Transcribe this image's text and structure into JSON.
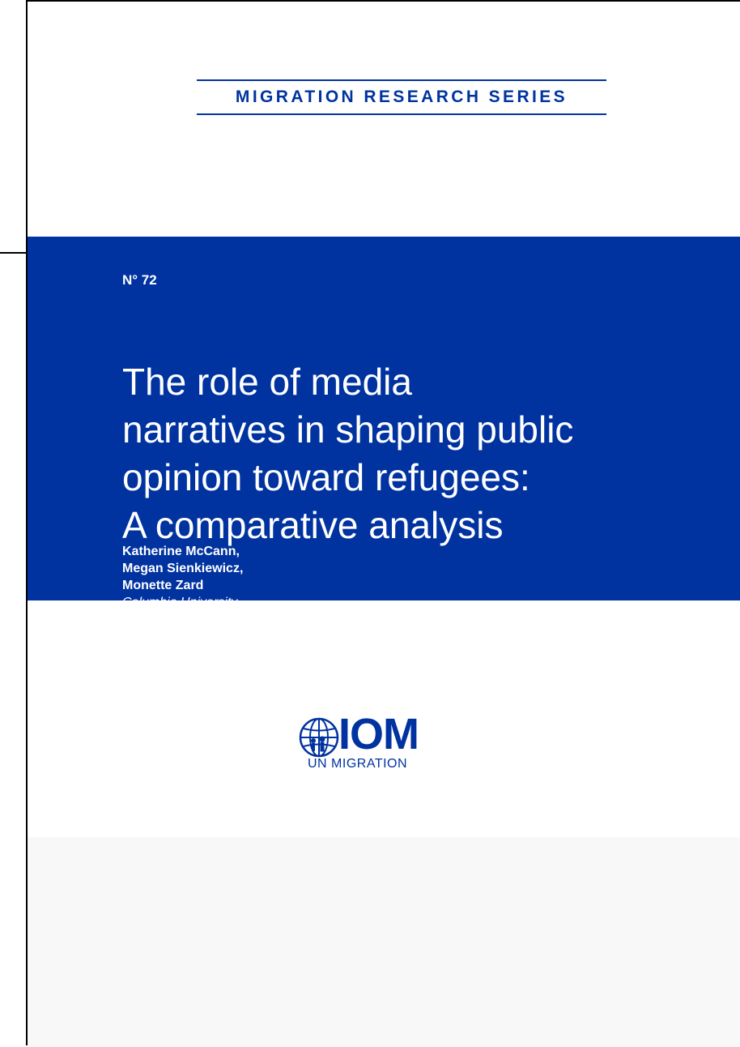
{
  "cover": {
    "series_title": "MIGRATION RESEARCH SERIES",
    "number": "N° 72",
    "title_lines": [
      "The role of media",
      "narratives in shaping public",
      "opinion toward refugees:",
      "A comparative analysis"
    ],
    "authors": [
      "Katherine McCann,",
      "Megan Sienkiewicz,",
      "Monette Zard"
    ],
    "affiliation": "Columbia University"
  },
  "logo": {
    "acronym": "IOM",
    "tagline": "UN MIGRATION",
    "icon": "iom-globe-icon"
  },
  "colors": {
    "brand_blue": "#0033a0",
    "text_on_blue": "#ffffff",
    "footer_grey": "#f8f8f8"
  }
}
